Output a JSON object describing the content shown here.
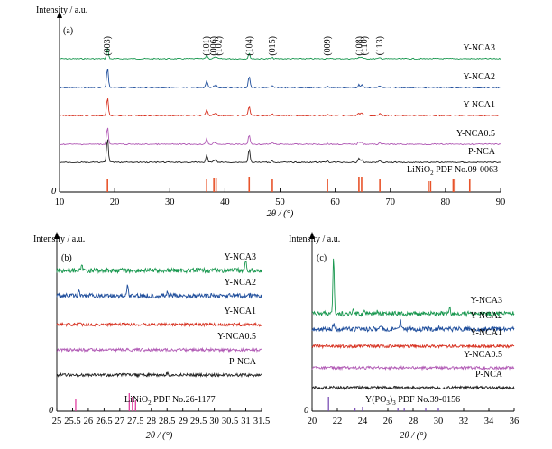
{
  "chart_data": [
    {
      "type": "line",
      "panel": "(a)",
      "ylabel": "Intensity / a.u.",
      "xlabel_main": "2θ / (°)",
      "xlim": [
        10,
        90
      ],
      "xticks": [
        10,
        20,
        30,
        40,
        50,
        60,
        70,
        80,
        90
      ],
      "zero_label": "0",
      "peaks": [
        18.7,
        36.7,
        38.0,
        38.4,
        44.4,
        48.6,
        58.6,
        64.3,
        64.8,
        68.1
      ],
      "peak_labels": [
        {
          "text": "(003)",
          "x": 18.7
        },
        {
          "text": "(101)",
          "x": 36.7
        },
        {
          "text": "(006)",
          "x": 38.0
        },
        {
          "text": "(102)",
          "x": 38.9
        },
        {
          "text": "(104)",
          "x": 44.4
        },
        {
          "text": "(015)",
          "x": 48.6
        },
        {
          "text": "(009)",
          "x": 58.6
        },
        {
          "text": "(108)",
          "x": 64.4
        },
        {
          "text": "(110)",
          "x": 65.3
        },
        {
          "text": "(113)",
          "x": 68.1
        }
      ],
      "series": [
        {
          "name": "Y-NCA3",
          "color": "#1a9850",
          "peak_heights": [
            12,
            4,
            1,
            2,
            6,
            1,
            1,
            2,
            2,
            1
          ]
        },
        {
          "name": "Y-NCA2",
          "color": "#1f4e9c",
          "peak_heights": [
            22,
            7,
            2,
            3,
            13,
            2,
            2,
            3,
            3,
            2
          ]
        },
        {
          "name": "Y-NCA1",
          "color": "#d7301f",
          "peak_heights": [
            20,
            6,
            2,
            3,
            11,
            2,
            1,
            3,
            3,
            2
          ]
        },
        {
          "name": "Y-NCA0.5",
          "color": "#b15ab5",
          "peak_heights": [
            20,
            6,
            2,
            2,
            11,
            2,
            1,
            3,
            3,
            2
          ]
        },
        {
          "name": "P-NCA",
          "color": "#222222",
          "peak_heights": [
            28,
            8,
            2,
            3,
            15,
            2,
            2,
            4,
            3,
            2
          ]
        }
      ],
      "reference": {
        "label_main": "LiNiO",
        "label_sub": "2",
        "label_rest": " PDF No.09-0063",
        "color": "#e8542b",
        "lines": [
          {
            "x": 18.7,
            "h": 14
          },
          {
            "x": 36.7,
            "h": 14
          },
          {
            "x": 38.0,
            "h": 16
          },
          {
            "x": 38.4,
            "h": 16
          },
          {
            "x": 44.4,
            "h": 17
          },
          {
            "x": 48.6,
            "h": 14
          },
          {
            "x": 58.6,
            "h": 14
          },
          {
            "x": 64.3,
            "h": 17
          },
          {
            "x": 64.8,
            "h": 17
          },
          {
            "x": 68.1,
            "h": 15
          },
          {
            "x": 76.9,
            "h": 12
          },
          {
            "x": 77.3,
            "h": 12
          },
          {
            "x": 81.4,
            "h": 15
          },
          {
            "x": 81.7,
            "h": 15
          },
          {
            "x": 84.4,
            "h": 14
          }
        ]
      }
    },
    {
      "type": "line",
      "panel": "(b)",
      "ylabel": "Intensity / a.u.",
      "xlabel_main": "2θ / (°)",
      "xlim": [
        25,
        31.5
      ],
      "xticks": [
        25,
        25.5,
        26,
        26.5,
        27,
        27.5,
        28,
        28.5,
        29,
        29.5,
        30,
        30.5,
        31,
        31.5
      ],
      "zero_label": "0",
      "series": [
        {
          "name": "Y-NCA3",
          "color": "#1a9850",
          "peaks": [
            {
              "x": 25.8,
              "h": 4
            },
            {
              "x": 31.0,
              "h": 10
            }
          ]
        },
        {
          "name": "Y-NCA2",
          "color": "#1f4e9c",
          "peaks": [
            {
              "x": 25.7,
              "h": 4
            },
            {
              "x": 27.25,
              "h": 12
            },
            {
              "x": 28.5,
              "h": 3
            }
          ]
        },
        {
          "name": "Y-NCA1",
          "color": "#d7301f",
          "peaks": [
            {
              "x": 25.7,
              "h": 2
            }
          ]
        },
        {
          "name": "Y-NCA0.5",
          "color": "#b15ab5",
          "peaks": []
        },
        {
          "name": "P-NCA",
          "color": "#222222",
          "peaks": [
            {
              "x": 28.5,
              "h": 2
            }
          ]
        }
      ],
      "reference": {
        "label_main": "LiNiO",
        "label_sub": "2",
        "label_rest": " PDF No.26-1177",
        "color": "#e040a0",
        "lines": [
          {
            "x": 25.6,
            "h": 13
          },
          {
            "x": 27.3,
            "h": 20
          },
          {
            "x": 27.4,
            "h": 16
          },
          {
            "x": 27.5,
            "h": 12
          }
        ]
      }
    },
    {
      "type": "line",
      "panel": "(c)",
      "ylabel": "Intensity / a.u.",
      "xlabel_main": "2θ / (°)",
      "xlim": [
        20,
        36
      ],
      "xticks": [
        20,
        22,
        24,
        26,
        28,
        30,
        32,
        34,
        36
      ],
      "zero_label": "0",
      "series": [
        {
          "name": "Y-NCA3",
          "color": "#1a9850",
          "peaks": [
            {
              "x": 21.7,
              "h": 60
            },
            {
              "x": 23.3,
              "h": 5
            },
            {
              "x": 24.2,
              "h": 4
            },
            {
              "x": 25.2,
              "h": 3
            },
            {
              "x": 30.9,
              "h": 6
            }
          ]
        },
        {
          "name": "Y-NCA2",
          "color": "#1f4e9c",
          "peaks": [
            {
              "x": 21.7,
              "h": 5
            },
            {
              "x": 25.5,
              "h": 3
            },
            {
              "x": 27.0,
              "h": 9
            },
            {
              "x": 30.0,
              "h": 2
            }
          ]
        },
        {
          "name": "Y-NCA1",
          "color": "#d7301f",
          "peaks": []
        },
        {
          "name": "Y-NCA0.5",
          "color": "#b15ab5",
          "peaks": []
        },
        {
          "name": "P-NCA",
          "color": "#222222",
          "peaks": []
        }
      ],
      "reference": {
        "label_main": "Y(PO",
        "label_sub": "3",
        "label_rest": ")",
        "label_sub2": "3",
        "label_tail": " PDF No.39-0156",
        "color": "#7b4fb5",
        "lines": [
          {
            "x": 21.3,
            "h": 16
          },
          {
            "x": 23.4,
            "h": 4
          },
          {
            "x": 24.0,
            "h": 5
          },
          {
            "x": 26.8,
            "h": 4
          },
          {
            "x": 27.3,
            "h": 4
          },
          {
            "x": 29.0,
            "h": 3
          },
          {
            "x": 30.0,
            "h": 3
          }
        ]
      }
    }
  ]
}
